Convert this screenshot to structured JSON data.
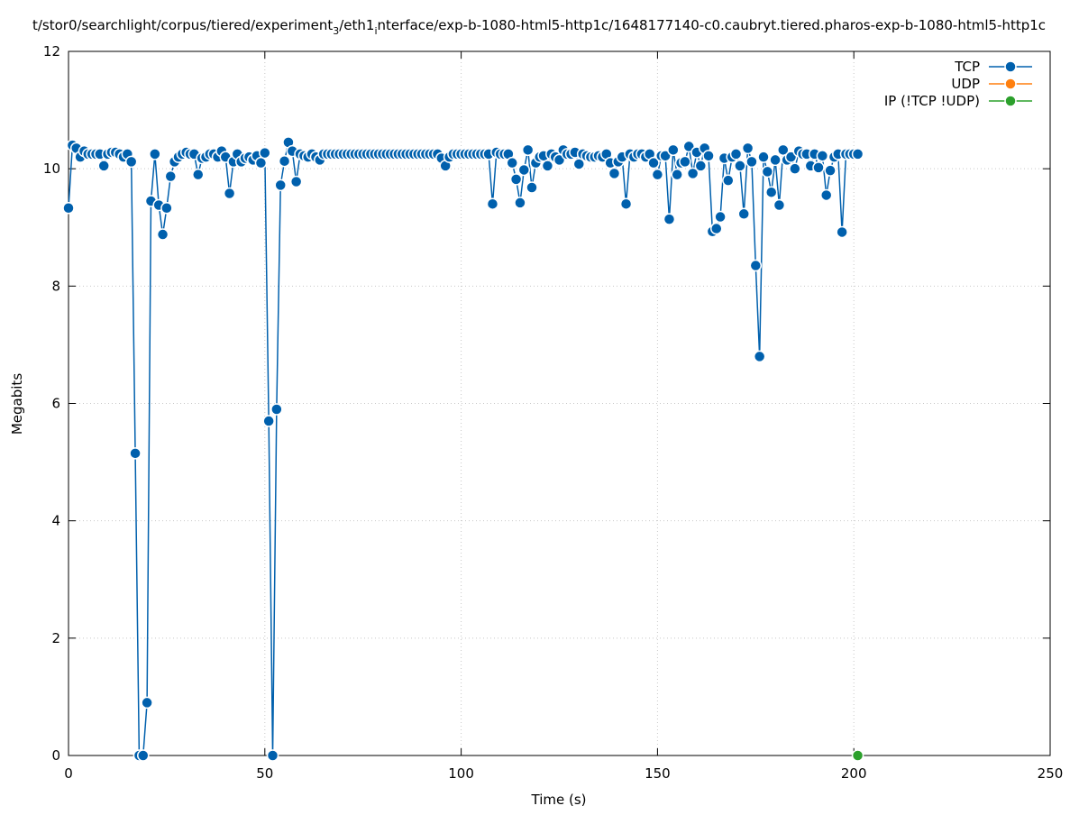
{
  "chart_data": {
    "type": "line",
    "title": [
      "t/stor0/searchlight/corpus/tiered/experiment",
      "3",
      "/eth1",
      "i",
      "nterface/exp-b-1080-html5-http1c/1648177140-c0.caubryt.tiered.pharos-exp-b-1080-html5-http1c"
    ],
    "xlabel": "Time (s)",
    "ylabel": "Megabits",
    "xlim": [
      0,
      250
    ],
    "xticks": [
      0,
      50,
      100,
      150,
      200,
      250
    ],
    "ylim": [
      0,
      12
    ],
    "yticks": [
      0,
      2,
      4,
      6,
      8,
      10,
      12
    ],
    "grid": true,
    "legend": "top-right",
    "series": [
      {
        "name": "TCP",
        "color": "#0060ad",
        "x": [
          0,
          1,
          2,
          3,
          4,
          5,
          6,
          7,
          8,
          9,
          10,
          11,
          12,
          13,
          14,
          15,
          16,
          17,
          18,
          19,
          20,
          21,
          22,
          23,
          24,
          25,
          26,
          27,
          28,
          29,
          30,
          31,
          32,
          33,
          34,
          35,
          36,
          37,
          38,
          39,
          40,
          41,
          42,
          43,
          44,
          45,
          46,
          47,
          48,
          49,
          50,
          51,
          52,
          53,
          54,
          55,
          56,
          57,
          58,
          59,
          60,
          61,
          62,
          63,
          64,
          65,
          66,
          67,
          68,
          69,
          70,
          71,
          72,
          73,
          74,
          75,
          76,
          77,
          78,
          79,
          80,
          81,
          82,
          83,
          84,
          85,
          86,
          87,
          88,
          89,
          90,
          91,
          92,
          93,
          94,
          95,
          96,
          97,
          98,
          99,
          100,
          101,
          102,
          103,
          104,
          105,
          106,
          107,
          108,
          109,
          110,
          111,
          112,
          113,
          114,
          115,
          116,
          117,
          118,
          119,
          120,
          121,
          122,
          123,
          124,
          125,
          126,
          127,
          128,
          129,
          130,
          131,
          132,
          133,
          134,
          135,
          136,
          137,
          138,
          139,
          140,
          141,
          142,
          143,
          144,
          145,
          146,
          147,
          148,
          149,
          150,
          151,
          152,
          153,
          154,
          155,
          156,
          157,
          158,
          159,
          160,
          161,
          162,
          163,
          164,
          165,
          166,
          167,
          168,
          169,
          170,
          171,
          172,
          173,
          174,
          175,
          176,
          177,
          178,
          179,
          180,
          181,
          182,
          183,
          184,
          185,
          186,
          187,
          188,
          189,
          190,
          191,
          192,
          193,
          194,
          195,
          196,
          197,
          198,
          199,
          200,
          201
        ],
        "values": [
          9.33,
          10.4,
          10.35,
          10.2,
          10.3,
          10.25,
          10.25,
          10.25,
          10.25,
          10.05,
          10.25,
          10.28,
          10.28,
          10.25,
          10.2,
          10.25,
          10.12,
          5.15,
          0,
          0,
          0.9,
          9.45,
          10.25,
          9.38,
          8.88,
          9.33,
          9.87,
          10.12,
          10.2,
          10.25,
          10.28,
          10.25,
          10.25,
          9.9,
          10.18,
          10.2,
          10.25,
          10.25,
          10.2,
          10.3,
          10.2,
          9.58,
          10.12,
          10.25,
          10.12,
          10.18,
          10.2,
          10.15,
          10.22,
          10.1,
          10.27,
          5.7,
          0,
          5.9,
          9.72,
          10.13,
          10.45,
          10.3,
          9.78,
          10.25,
          10.22,
          10.2,
          10.25,
          10.2,
          10.15,
          10.25,
          10.25,
          10.25,
          10.25,
          10.25,
          10.25,
          10.25,
          10.25,
          10.25,
          10.25,
          10.25,
          10.25,
          10.25,
          10.25,
          10.25,
          10.25,
          10.25,
          10.25,
          10.25,
          10.25,
          10.25,
          10.25,
          10.25,
          10.25,
          10.25,
          10.25,
          10.25,
          10.25,
          10.25,
          10.25,
          10.18,
          10.05,
          10.2,
          10.25,
          10.25,
          10.25,
          10.25,
          10.25,
          10.25,
          10.25,
          10.25,
          10.25,
          10.25,
          9.4,
          10.28,
          10.25,
          10.25,
          10.25,
          10.1,
          9.82,
          9.42,
          9.98,
          10.32,
          9.68,
          10.1,
          10.2,
          10.22,
          10.05,
          10.25,
          10.2,
          10.15,
          10.32,
          10.25,
          10.25,
          10.28,
          10.08,
          10.25,
          10.22,
          10.2,
          10.2,
          10.22,
          10.2,
          10.25,
          10.1,
          9.92,
          10.12,
          10.2,
          9.4,
          10.25,
          10.2,
          10.25,
          10.25,
          10.2,
          10.25,
          10.1,
          9.9,
          10.22,
          10.22,
          9.14,
          10.32,
          9.9,
          10.1,
          10.12,
          10.38,
          9.92,
          10.28,
          10.05,
          10.35,
          10.22,
          8.93,
          8.98,
          9.18,
          10.18,
          9.8,
          10.2,
          10.25,
          10.05,
          9.23,
          10.35,
          10.12,
          8.35,
          6.8,
          10.2,
          9.95,
          9.6,
          10.15,
          9.38,
          10.32,
          10.15,
          10.2,
          10.0,
          10.3,
          10.25,
          10.25,
          10.05,
          10.25,
          10.02,
          10.22,
          9.55,
          9.97,
          10.2,
          10.25,
          8.92,
          10.25,
          10.25,
          10.25,
          10.25
        ]
      },
      {
        "name": "UDP",
        "color": "#ff7f0e",
        "x": [],
        "values": []
      },
      {
        "name": "IP (!TCP  !UDP)",
        "color": "#2ca02c",
        "x": [
          201
        ],
        "values": [
          0
        ]
      }
    ]
  }
}
